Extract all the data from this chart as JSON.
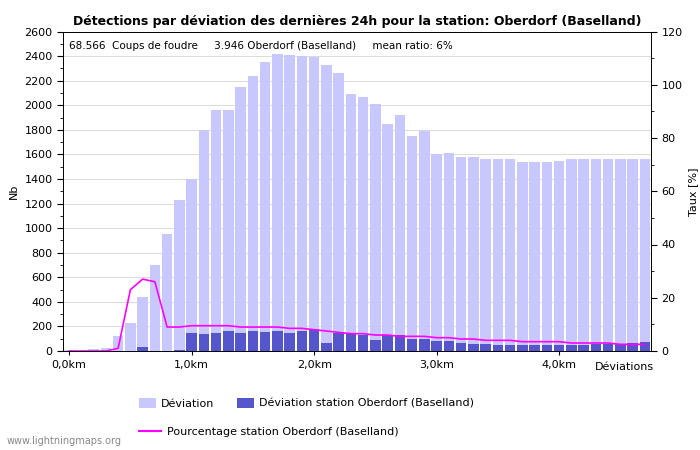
{
  "title": "Détections par déviation des dernières 24h pour la station: Oberdorf (Baselland)",
  "ylabel_left": "Nb",
  "ylabel_right": "Taux [%]",
  "xlabel_right": "Déviations",
  "annotation": "68.566  Coups de foudre     3.946 Oberdorf (Baselland)     mean ratio: 6%",
  "watermark": "www.lightningmaps.org",
  "ylim_left": [
    0,
    2600
  ],
  "ylim_right": [
    0,
    120
  ],
  "yticks_left": [
    0,
    200,
    400,
    600,
    800,
    1000,
    1200,
    1400,
    1600,
    1800,
    2000,
    2200,
    2400,
    2600
  ],
  "yticks_right": [
    0,
    20,
    40,
    60,
    80,
    100,
    120
  ],
  "xtick_labels": [
    "0,0km",
    "1,0km",
    "2,0km",
    "3,0km",
    "4,0km"
  ],
  "xtick_positions": [
    0,
    10,
    20,
    30,
    40
  ],
  "n_bars": 48,
  "bar_width": 0.85,
  "deviation_bars": [
    5,
    2,
    15,
    25,
    120,
    230,
    440,
    700,
    950,
    1230,
    1400,
    1800,
    1960,
    1960,
    2150,
    2240,
    2350,
    2420,
    2410,
    2400,
    2390,
    2330,
    2260,
    2090,
    2070,
    2010,
    1850,
    1920,
    1750,
    1790,
    1600,
    1610,
    1580,
    1580,
    1560,
    1560,
    1560,
    1540,
    1540,
    1540,
    1550,
    1560,
    1560,
    1560,
    1560,
    1560,
    1560,
    1560
  ],
  "station_bars": [
    0,
    0,
    0,
    0,
    0,
    0,
    30,
    0,
    0,
    5,
    150,
    140,
    150,
    160,
    150,
    160,
    155,
    160,
    150,
    165,
    180,
    65,
    145,
    135,
    130,
    90,
    130,
    130,
    95,
    100,
    80,
    80,
    65,
    60,
    55,
    50,
    45,
    45,
    50,
    50,
    50,
    50,
    50,
    55,
    60,
    60,
    65,
    70
  ],
  "pct_line": [
    0,
    0,
    0,
    0,
    1,
    23,
    27,
    26,
    9,
    9,
    9.5,
    9.5,
    9.5,
    9.5,
    9,
    9,
    9,
    9,
    8.5,
    8.5,
    8,
    7.5,
    7,
    6.5,
    6.5,
    6,
    6,
    5.5,
    5.5,
    5.5,
    5,
    5,
    4.5,
    4.5,
    4,
    4,
    4,
    3.5,
    3.5,
    3.5,
    3.5,
    3,
    3,
    3,
    3,
    2.5,
    2.5,
    2.5
  ],
  "color_light_bar": "#c8c8ff",
  "color_dark_bar": "#5555cc",
  "color_line": "#ff00ff",
  "color_grid": "#cccccc",
  "bg_color": "#ffffff",
  "legend_label_deviation": "Déviation",
  "legend_label_station": "Déviation station Oberdorf (Baselland)",
  "legend_label_pct": "Pourcentage station Oberdorf (Baselland)"
}
